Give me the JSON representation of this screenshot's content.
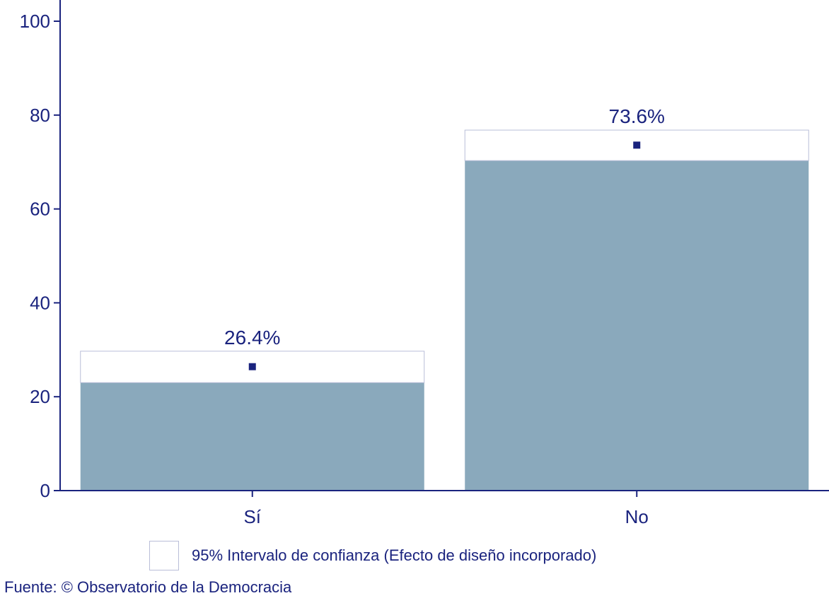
{
  "chart_data": {
    "type": "bar",
    "categories": [
      "Sí",
      "No"
    ],
    "values": [
      26.4,
      73.6
    ],
    "value_labels": [
      "26.4%",
      "73.6%"
    ],
    "ci_lower": [
      23.0,
      70.3
    ],
    "ci_upper": [
      29.7,
      76.8
    ],
    "ylim": [
      0,
      100
    ],
    "yticks": [
      0,
      20,
      40,
      60,
      80,
      100
    ],
    "grid": false,
    "legend": {
      "position": "bottom",
      "entries": [
        "95% Intervalo de confianza (Efecto de diseño incorporado)"
      ]
    },
    "colors": {
      "bar": "#8aa9bc",
      "axis": "#1a237e",
      "text": "#1a237e",
      "ci_box_border": "#b9bed8",
      "point": "#1a237e"
    }
  },
  "legend_label": "95% Intervalo de confianza (Efecto de diseño incorporado)",
  "source": "Fuente: © Observatorio de la Democracia"
}
